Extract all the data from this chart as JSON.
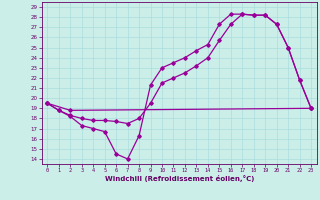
{
  "xlabel": "Windchill (Refroidissement éolien,°C)",
  "background_color": "#cceee8",
  "line_color": "#990099",
  "grid_color": "#aadddd",
  "spine_color": "#660066",
  "tick_color": "#660066",
  "xlim": [
    -0.5,
    23.5
  ],
  "ylim": [
    13.5,
    29.5
  ],
  "yticks": [
    14,
    15,
    16,
    17,
    18,
    19,
    20,
    21,
    22,
    23,
    24,
    25,
    26,
    27,
    28,
    29
  ],
  "xticks": [
    0,
    1,
    2,
    3,
    4,
    5,
    6,
    7,
    8,
    9,
    10,
    11,
    12,
    13,
    14,
    15,
    16,
    17,
    18,
    19,
    20,
    21,
    22,
    23
  ],
  "series": [
    {
      "x": [
        0,
        1,
        2,
        3,
        4,
        5,
        6,
        7,
        8,
        9,
        10,
        11,
        12,
        13,
        14,
        15,
        16,
        17,
        18,
        19,
        20,
        21,
        22,
        23
      ],
      "y": [
        19.5,
        18.8,
        18.2,
        17.3,
        17.0,
        16.7,
        14.5,
        14.0,
        16.3,
        21.3,
        23.0,
        23.5,
        24.0,
        24.7,
        25.3,
        27.3,
        28.3,
        28.3,
        28.2,
        28.2,
        27.3,
        25.0,
        21.8,
        19.0
      ]
    },
    {
      "x": [
        0,
        2,
        23
      ],
      "y": [
        19.5,
        18.8,
        19.0
      ]
    },
    {
      "x": [
        0,
        1,
        2,
        3,
        4,
        5,
        6,
        7,
        8,
        9,
        10,
        11,
        12,
        13,
        14,
        15,
        16,
        17,
        18,
        19,
        20,
        21,
        22,
        23
      ],
      "y": [
        19.5,
        18.8,
        18.3,
        18.0,
        17.8,
        17.8,
        17.7,
        17.5,
        18.0,
        19.5,
        21.5,
        22.0,
        22.5,
        23.2,
        24.0,
        25.7,
        27.3,
        28.3,
        28.2,
        28.2,
        27.3,
        25.0,
        21.8,
        19.0
      ]
    }
  ]
}
